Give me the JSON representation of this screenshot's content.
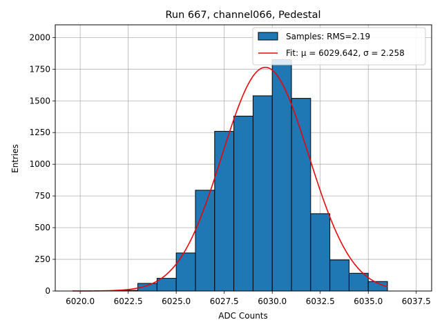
{
  "chart_data": {
    "type": "bar",
    "title": "Run 667, channel066, Pedestal",
    "xlabel": "ADC Counts",
    "ylabel": "Entries",
    "xlim": [
      6018.7,
      6038.3
    ],
    "ylim": [
      0,
      2100
    ],
    "xticks": [
      6020.0,
      6022.5,
      6025.0,
      6027.5,
      6030.0,
      6032.5,
      6035.0,
      6037.5
    ],
    "xtick_labels": [
      "6020.0",
      "6022.5",
      "6025.0",
      "6027.5",
      "6030.0",
      "6032.5",
      "6035.0",
      "6037.5"
    ],
    "yticks": [
      0,
      250,
      500,
      750,
      1000,
      1250,
      1500,
      1750,
      2000
    ],
    "ytick_labels": [
      "0",
      "250",
      "500",
      "750",
      "1000",
      "1250",
      "1500",
      "1750",
      "2000"
    ],
    "grid": true,
    "legend_position": "top-right",
    "series": [
      {
        "name": "Samples: RMS=2.19",
        "kind": "histogram",
        "color": "#1f77b4",
        "edge_color": "#000000",
        "bins": [
          [
            6022,
            6023,
            5
          ],
          [
            6023,
            6024,
            60
          ],
          [
            6024,
            6025,
            100
          ],
          [
            6025,
            6026,
            300
          ],
          [
            6026,
            6027,
            795
          ],
          [
            6027,
            6028,
            1260
          ],
          [
            6028,
            6029,
            1380
          ],
          [
            6029,
            6030,
            1540
          ],
          [
            6030,
            6031,
            1825
          ],
          [
            6031,
            6032,
            1520
          ],
          [
            6032,
            6033,
            610
          ],
          [
            6033,
            6034,
            245
          ],
          [
            6034,
            6035,
            140
          ],
          [
            6035,
            6036,
            75
          ]
        ]
      },
      {
        "name": "Fit: μ = 6029.642, σ = 2.258",
        "kind": "gaussian-fit",
        "color": "#e8060a",
        "mu": 6029.642,
        "sigma": 2.258,
        "amplitude": 1765,
        "x_range": [
          6019.6,
          6036.0
        ]
      }
    ]
  }
}
